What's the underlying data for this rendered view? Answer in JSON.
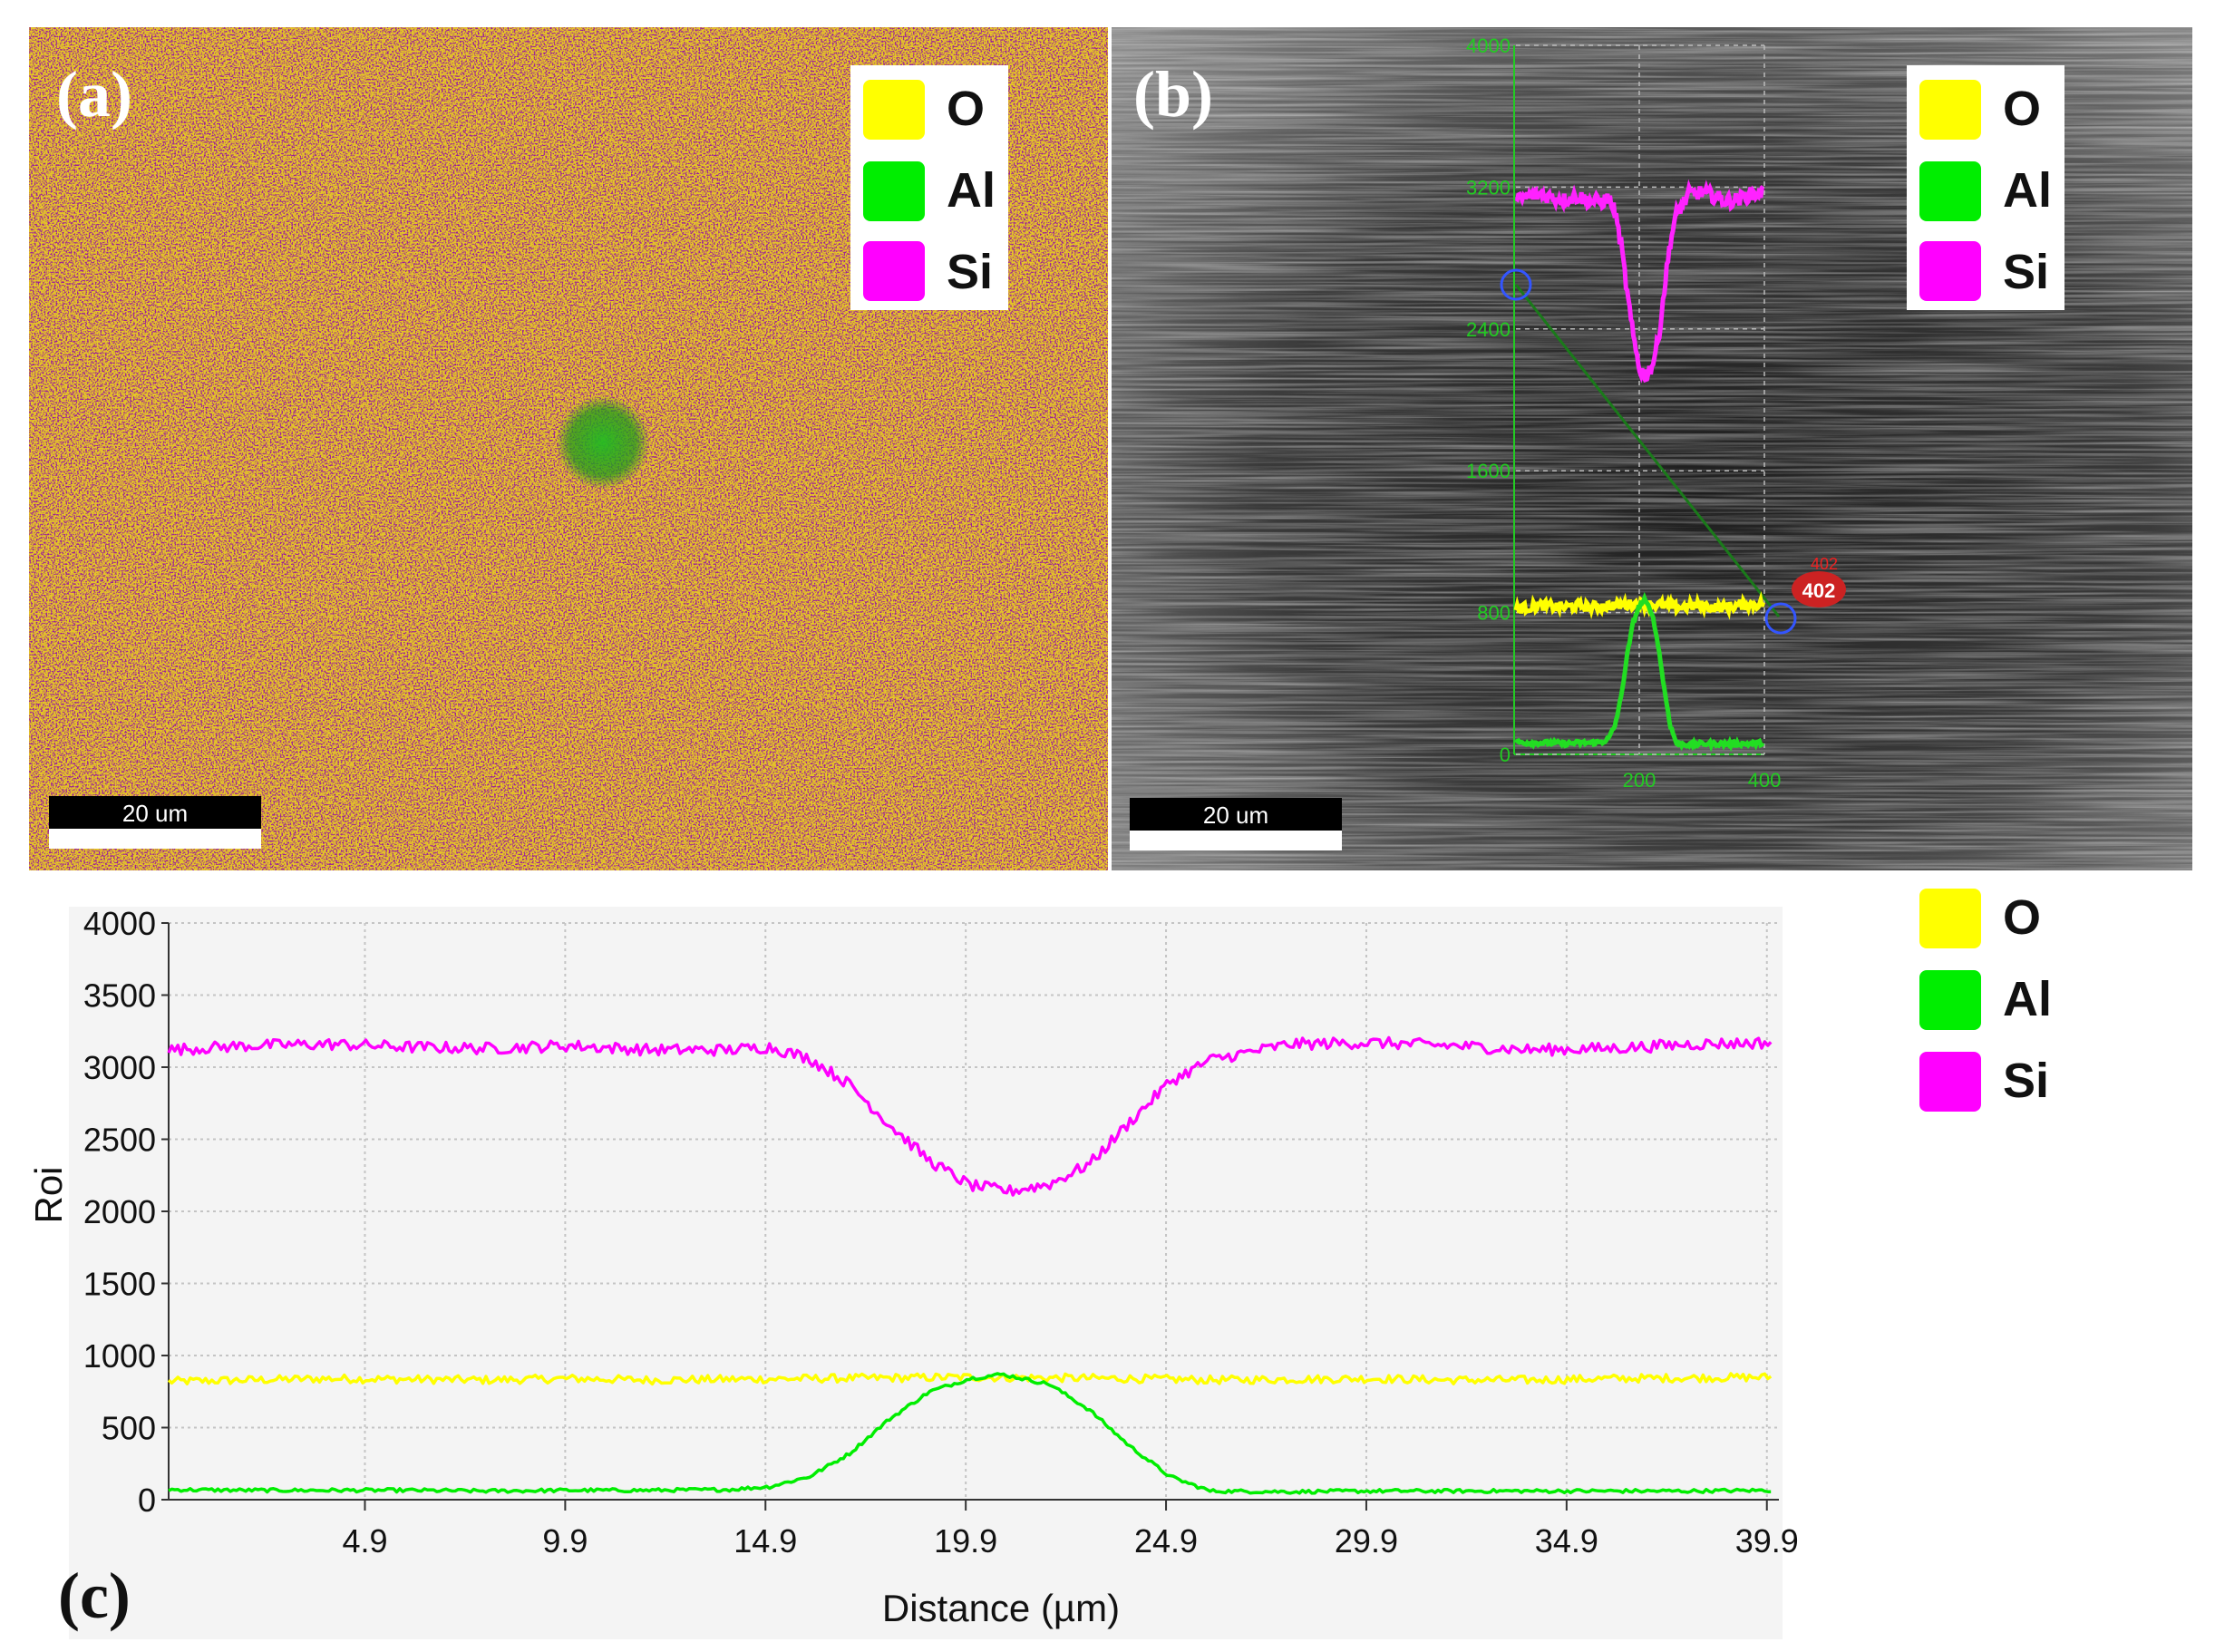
{
  "panels": {
    "a": {
      "label": "(a)",
      "scale_bar": "20 um",
      "legend": [
        {
          "name": "O",
          "color": "#ffff00"
        },
        {
          "name": "Al",
          "color": "#00ee00"
        },
        {
          "name": "Si",
          "color": "#ff00ff"
        }
      ]
    },
    "b": {
      "label": "(b)",
      "scale_bar": "20 um",
      "legend": [
        {
          "name": "O",
          "color": "#ffff00"
        },
        {
          "name": "Al",
          "color": "#00ee00"
        },
        {
          "name": "Si",
          "color": "#ff00ff"
        }
      ],
      "inset": {
        "y_ticks": [
          "4000",
          "3200",
          "2400",
          "1600",
          "800",
          "0"
        ],
        "x_ticks": [
          "200",
          "400"
        ],
        "marker_label": "402",
        "marker_label_top": "402"
      }
    },
    "c": {
      "label": "(c)",
      "legend": [
        {
          "name": "O",
          "color": "#ffff00"
        },
        {
          "name": "Al",
          "color": "#00ee00"
        },
        {
          "name": "Si",
          "color": "#ff00ff"
        }
      ]
    }
  },
  "chart_data": {
    "type": "line",
    "xlabel": "Distance (µm)",
    "ylabel": "Roi",
    "xlim": [
      0,
      40.2
    ],
    "ylim": [
      0,
      4000
    ],
    "x_ticks": [
      "4.9",
      "9.9",
      "14.9",
      "19.9",
      "24.9",
      "29.9",
      "34.9",
      "39.9"
    ],
    "y_ticks": [
      "0",
      "500",
      "1000",
      "1500",
      "2000",
      "2500",
      "3000",
      "3500",
      "4000"
    ],
    "grid": true,
    "legend_position": "right",
    "series": [
      {
        "name": "O",
        "color": "#ffff00",
        "x": [
          0,
          2,
          4,
          6,
          8,
          10,
          12,
          14,
          16,
          18,
          20,
          22,
          24,
          26,
          28,
          30,
          32,
          34,
          36,
          38,
          40
        ],
        "values": [
          820,
          830,
          840,
          835,
          830,
          840,
          830,
          835,
          840,
          845,
          850,
          845,
          840,
          830,
          835,
          840,
          830,
          830,
          840,
          845,
          850
        ]
      },
      {
        "name": "Al",
        "color": "#00ee00",
        "x": [
          0,
          2,
          4,
          6,
          8,
          10,
          12,
          14,
          15,
          16,
          17,
          18,
          19,
          20,
          20.8,
          22,
          23,
          24,
          25,
          26,
          28,
          30,
          32,
          34,
          36,
          38,
          40
        ],
        "values": [
          70,
          65,
          65,
          65,
          60,
          65,
          65,
          70,
          90,
          160,
          320,
          560,
          750,
          840,
          870,
          800,
          620,
          370,
          160,
          60,
          55,
          60,
          60,
          60,
          60,
          60,
          65
        ]
      },
      {
        "name": "Si",
        "color": "#ff00ff",
        "x": [
          0,
          2,
          4,
          6,
          8,
          10,
          12,
          14,
          15,
          16,
          17,
          18,
          19,
          20,
          21,
          22,
          23,
          24,
          25,
          26,
          28,
          30,
          32,
          34,
          36,
          38,
          40
        ],
        "values": [
          3120,
          3150,
          3160,
          3140,
          3130,
          3150,
          3120,
          3120,
          3140,
          3060,
          2880,
          2600,
          2350,
          2180,
          2140,
          2190,
          2330,
          2620,
          2900,
          3050,
          3160,
          3170,
          3150,
          3120,
          3130,
          3160,
          3170
        ]
      }
    ]
  }
}
